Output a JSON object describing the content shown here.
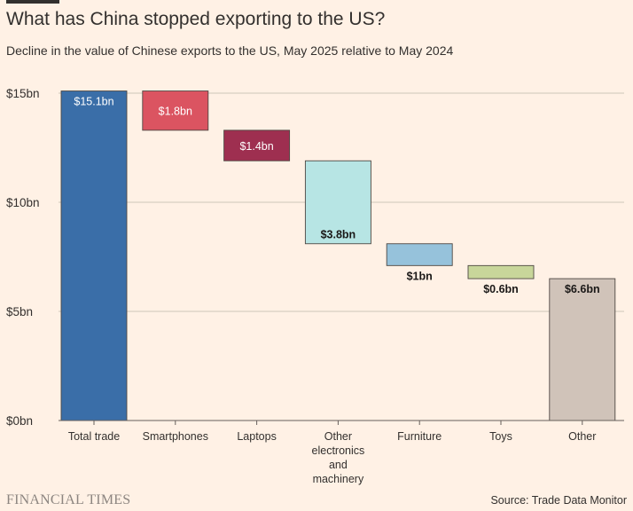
{
  "header": {
    "title": "What has China stopped exporting to the US?",
    "subtitle": "Decline in the value of Chinese exports to the US, May 2025 relative to May 2024"
  },
  "footer": {
    "brand": "FINANCIAL TIMES",
    "source": "Source: Trade Data Monitor"
  },
  "colors": {
    "background": "#FFF1E5",
    "gridline": "#CEC6B9",
    "axis": "#66605C",
    "text": "#33302E"
  },
  "chart_data": {
    "type": "bar",
    "subtype": "waterfall",
    "title": "What has China stopped exporting to the US?",
    "subtitle": "Decline in the value of Chinese exports to the US, May 2025 relative to May 2024",
    "xlabel": "",
    "ylabel": "",
    "ylim": [
      0,
      15
    ],
    "yticks": [
      {
        "value": 0,
        "label": "$0bn"
      },
      {
        "value": 5,
        "label": "$5bn"
      },
      {
        "value": 10,
        "label": "$10bn"
      },
      {
        "value": 15,
        "label": "$15bn"
      }
    ],
    "grid": true,
    "categories": [
      [
        "Total trade"
      ],
      [
        "Smartphones"
      ],
      [
        "Laptops"
      ],
      [
        "Other",
        "electronics",
        "and",
        "machinery"
      ],
      [
        "Furniture"
      ],
      [
        "Toys"
      ],
      [
        "Other"
      ]
    ],
    "bars": [
      {
        "start": 0,
        "end": 15.1,
        "value": 15.1,
        "label": "$15.1bn",
        "color": "#3A6EA8",
        "label_position": "inside-top",
        "label_color": "#FFFFFF"
      },
      {
        "start": 13.3,
        "end": 15.1,
        "value": 1.8,
        "label": "$1.8bn",
        "color": "#DB5461",
        "label_position": "inside-center",
        "label_color": "#FFFFFF"
      },
      {
        "start": 11.9,
        "end": 13.3,
        "value": 1.4,
        "label": "$1.4bn",
        "color": "#9E2F50",
        "label_position": "inside-center",
        "label_color": "#FFFFFF"
      },
      {
        "start": 8.1,
        "end": 11.9,
        "value": 3.8,
        "label": "$3.8bn",
        "color": "#B7E5E4",
        "label_position": "inside-bottom",
        "label_color": "#1A1817"
      },
      {
        "start": 7.1,
        "end": 8.1,
        "value": 1,
        "label": "$1bn",
        "color": "#96C2DB",
        "label_position": "below",
        "label_color": "#1A1817"
      },
      {
        "start": 6.5,
        "end": 7.1,
        "value": 0.6,
        "label": "$0.6bn",
        "color": "#C8D69A",
        "label_position": "below",
        "label_color": "#1A1817"
      },
      {
        "start": 0,
        "end": 6.5,
        "value": 6.6,
        "label": "$6.6bn",
        "color": "#D0C3B9",
        "label_position": "inside-top",
        "label_color": "#1A1817"
      }
    ]
  }
}
